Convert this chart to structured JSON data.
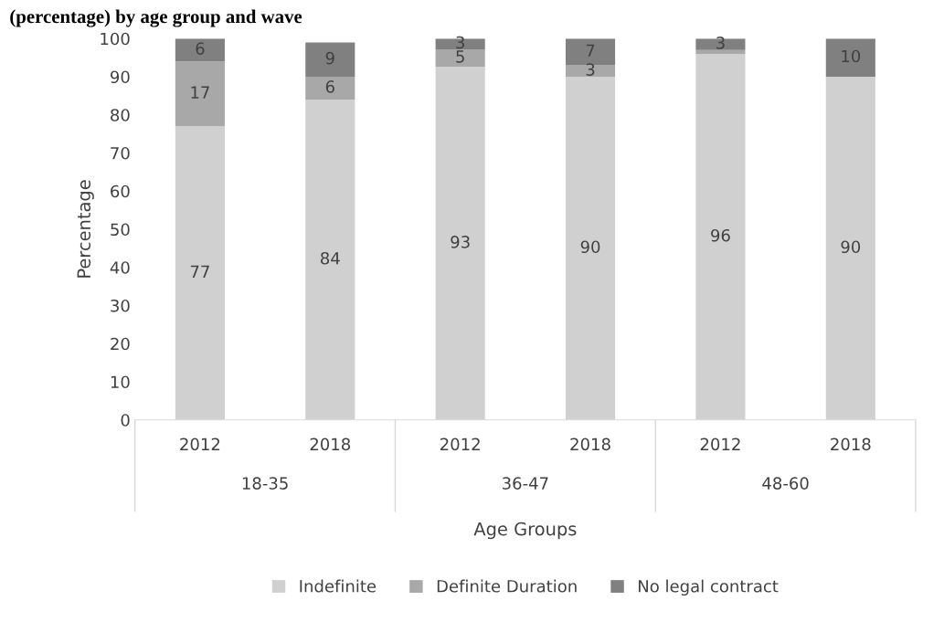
{
  "chart_data": {
    "type": "bar",
    "title": "(percentage) by age group and wave",
    "xlabel": "Age Groups",
    "ylabel": "Percentage",
    "stacked": true,
    "categories": [
      "2012",
      "2018",
      "2012",
      "2018",
      "2012",
      "2018"
    ],
    "annotations": [
      "18-35",
      "36-47",
      "48-60"
    ],
    "series": [
      {
        "name": "Indefinite",
        "color": "#d0d0d0",
        "values": [
          77,
          84,
          92.6,
          90,
          96,
          90
        ],
        "value_labels": [
          "77",
          "84",
          "93",
          "90",
          "96",
          "90"
        ]
      },
      {
        "name": "Definite Duration",
        "color": "#a8a8a8",
        "values": [
          17,
          6,
          4.6,
          3,
          1,
          0
        ],
        "value_labels": [
          "17",
          "6",
          "5",
          "3",
          null,
          null
        ]
      },
      {
        "name": "No legal contract",
        "color": "#808080",
        "values": [
          6,
          9,
          2.8,
          7,
          3,
          10
        ],
        "value_labels": [
          "6",
          "9",
          "3",
          "7",
          "3",
          "10"
        ]
      }
    ],
    "ylim": [
      0,
      100
    ],
    "yticks": [
      0,
      10,
      20,
      30,
      40,
      50,
      60,
      70,
      80,
      90,
      100
    ],
    "grid": false,
    "legend": "bottom"
  }
}
